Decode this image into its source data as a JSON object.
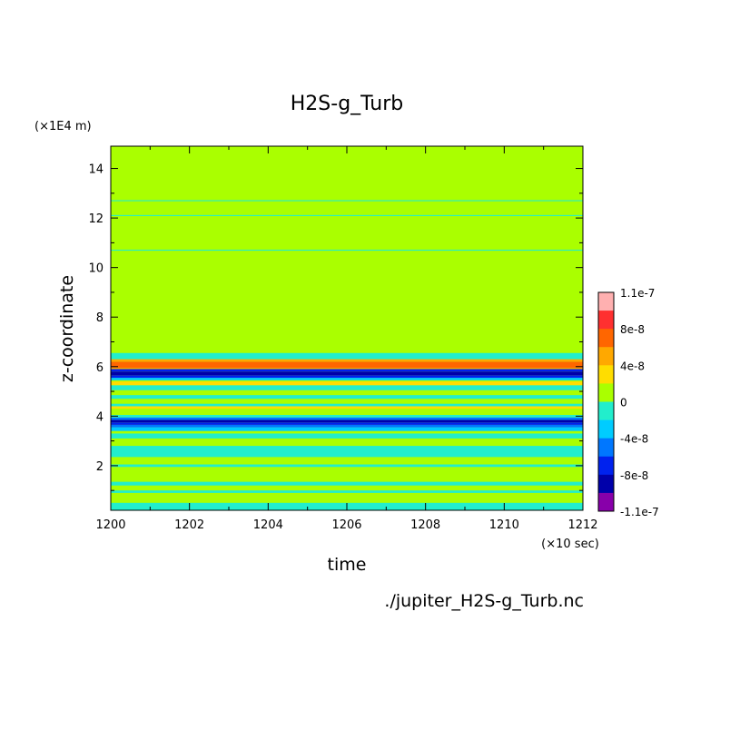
{
  "chart_data": {
    "type": "heatmap",
    "title": "H2S-g_Turb",
    "xlabel": "time",
    "ylabel": "z-coordinate",
    "x_unit": "(×10 sec)",
    "y_unit": "(×1E4 m)",
    "source_file": "./jupiter_H2S-g_Turb.nc",
    "xlim": [
      1200,
      1212
    ],
    "ylim": [
      0.2,
      14.9
    ],
    "x_ticks": [
      1200,
      1202,
      1204,
      1206,
      1208,
      1210,
      1212
    ],
    "y_ticks": [
      2,
      4,
      6,
      8,
      10,
      12,
      14
    ],
    "colorbar": {
      "labels": [
        "1.1e-7",
        "8e-8",
        "4e-8",
        "0",
        "-4e-8",
        "-8e-8",
        "-1.1e-7"
      ],
      "levels": [
        1.1e-07,
        8e-08,
        6e-08,
        4e-08,
        2e-08,
        0,
        -2e-08,
        -4e-08,
        -6e-08,
        -8e-08,
        -1e-07,
        -1.1e-07
      ],
      "colors": [
        "#ffb0b0",
        "#ff3030",
        "#ff6600",
        "#ffa800",
        "#ffdd00",
        "#aaff00",
        "#22eecc",
        "#00ccff",
        "#0077ff",
        "#0022ee",
        "#0000aa",
        "#8800aa"
      ]
    },
    "background_value": 0,
    "bands": [
      {
        "y": [
          0.2,
          0.5
        ],
        "value": -2e-08
      },
      {
        "y": [
          0.9,
          1.0
        ],
        "value": -2e-08
      },
      {
        "y": [
          1.2,
          1.35
        ],
        "value": -2e-08
      },
      {
        "y": [
          1.95,
          2.05
        ],
        "value": -2e-08
      },
      {
        "y": [
          2.35,
          2.8
        ],
        "value": -2e-08
      },
      {
        "y": [
          3.1,
          3.3
        ],
        "value": -2e-08
      },
      {
        "y": [
          3.4,
          3.55
        ],
        "value": -4e-08
      },
      {
        "y": [
          3.55,
          3.65
        ],
        "value": -6e-08
      },
      {
        "y": [
          3.65,
          3.75
        ],
        "value": -8e-08
      },
      {
        "y": [
          3.75,
          3.85
        ],
        "value": -1e-07
      },
      {
        "y": [
          3.85,
          3.95
        ],
        "value": -6e-08
      },
      {
        "y": [
          3.95,
          4.05
        ],
        "value": -2e-08
      },
      {
        "y": [
          4.3,
          4.4
        ],
        "value": 2e-08
      },
      {
        "y": [
          4.4,
          4.5
        ],
        "value": -2e-08
      },
      {
        "y": [
          4.7,
          4.85
        ],
        "value": -2e-08
      },
      {
        "y": [
          5.05,
          5.25
        ],
        "value": -2e-08
      },
      {
        "y": [
          5.25,
          5.4
        ],
        "value": 2e-08
      },
      {
        "y": [
          5.45,
          5.55
        ],
        "value": -4e-08
      },
      {
        "y": [
          5.55,
          5.65
        ],
        "value": -8e-08
      },
      {
        "y": [
          5.65,
          5.8
        ],
        "value": -1e-07
      },
      {
        "y": [
          5.8,
          5.9
        ],
        "value": -8e-08
      },
      {
        "y": [
          5.9,
          5.95
        ],
        "value": 4e-08
      },
      {
        "y": [
          5.95,
          6.2
        ],
        "value": 6e-08
      },
      {
        "y": [
          6.2,
          6.3
        ],
        "value": 4e-08
      },
      {
        "y": [
          6.3,
          6.55
        ],
        "value": -2e-08
      },
      {
        "y": [
          10.68,
          10.72
        ],
        "value": -2e-08
      },
      {
        "y": [
          12.08,
          12.12
        ],
        "value": -2e-08
      },
      {
        "y": [
          12.68,
          12.72
        ],
        "value": -2e-08
      }
    ]
  }
}
